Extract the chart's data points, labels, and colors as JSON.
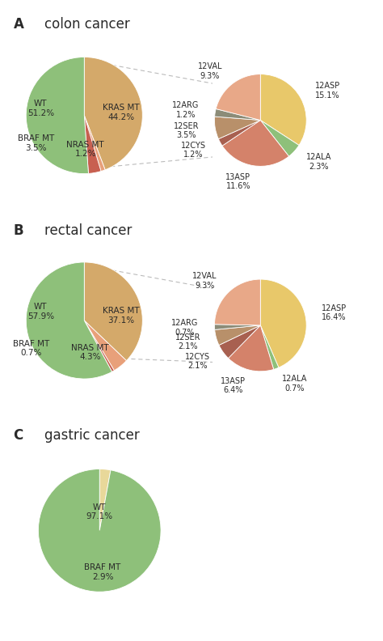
{
  "panel_A": {
    "title": "colon cancer",
    "main_pie": {
      "labels": [
        "KRAS MT",
        "NRAS MT",
        "BRAF MT",
        "WT"
      ],
      "values": [
        44.2,
        1.2,
        3.5,
        51.2
      ],
      "colors": [
        "#D4A96A",
        "#E8A07A",
        "#C86050",
        "#8EC07A"
      ]
    },
    "sub_pie": {
      "labels": [
        "12ASP",
        "12ALA",
        "13ASP",
        "12CYS",
        "12SER",
        "12ARG",
        "12VAL"
      ],
      "values": [
        15.1,
        2.3,
        11.6,
        1.2,
        3.5,
        1.2,
        9.3
      ],
      "colors": [
        "#E8C86A",
        "#8EC07A",
        "#D4826A",
        "#A86050",
        "#B8906A",
        "#8C8C78",
        "#E8A888"
      ]
    }
  },
  "panel_B": {
    "title": "rectal cancer",
    "main_pie": {
      "labels": [
        "KRAS MT",
        "NRAS MT",
        "BRAF MT",
        "WT"
      ],
      "values": [
        37.1,
        4.3,
        0.7,
        57.9
      ],
      "colors": [
        "#D4A96A",
        "#E8A07A",
        "#C86050",
        "#8EC07A"
      ]
    },
    "sub_pie": {
      "labels": [
        "12ASP",
        "12ALA",
        "13ASP",
        "12CYS",
        "12SER",
        "12ARG",
        "12VAL"
      ],
      "values": [
        16.4,
        0.7,
        6.4,
        2.1,
        2.1,
        0.7,
        9.3
      ],
      "colors": [
        "#E8C86A",
        "#8EC07A",
        "#D4826A",
        "#A86050",
        "#B8906A",
        "#8C8C78",
        "#E8A888"
      ]
    }
  },
  "panel_C": {
    "title": "gastric cancer",
    "main_pie": {
      "labels": [
        "BRAF MT",
        "WT"
      ],
      "values": [
        2.9,
        97.1
      ],
      "colors": [
        "#E8D89A",
        "#8EC07A"
      ]
    }
  },
  "bg_color": "#FFFFFF",
  "text_color": "#2A2A2A",
  "font_size": 7.5,
  "title_font_size": 12,
  "label_font_size": 7.5
}
